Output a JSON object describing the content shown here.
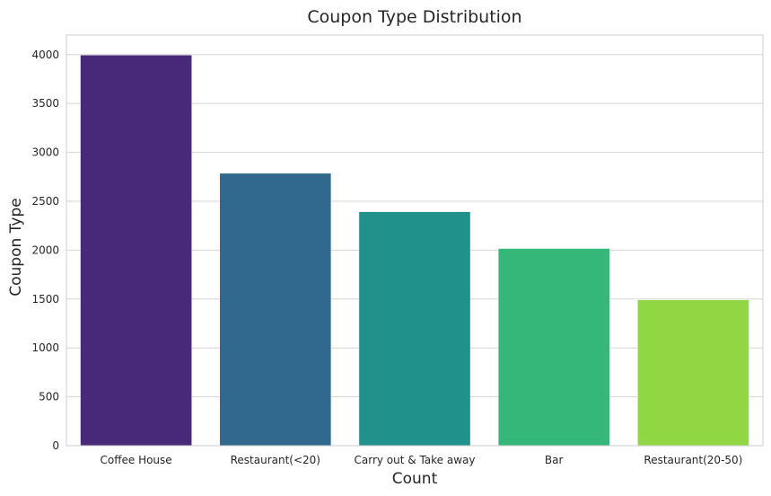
{
  "chart_data": {
    "type": "bar",
    "title": "Coupon Type Distribution",
    "xlabel": "Count",
    "ylabel": "Coupon Type",
    "categories": [
      "Coffee House",
      "Restaurant(<20)",
      "Carry out & Take away",
      "Bar",
      "Restaurant(20-50)"
    ],
    "values": [
      3996,
      2786,
      2393,
      2017,
      1492
    ],
    "colors": [
      "#482878",
      "#31688e",
      "#21918c",
      "#35b779",
      "#90d743"
    ],
    "ylim": [
      0,
      4200
    ],
    "yticks": [
      0,
      500,
      1000,
      1500,
      2000,
      2500,
      3000,
      3500,
      4000
    ],
    "grid": "horizontal",
    "style": {
      "grid_color": "#d3d3d3",
      "spine_color": "#cccccc",
      "text_color": "#262626"
    }
  }
}
